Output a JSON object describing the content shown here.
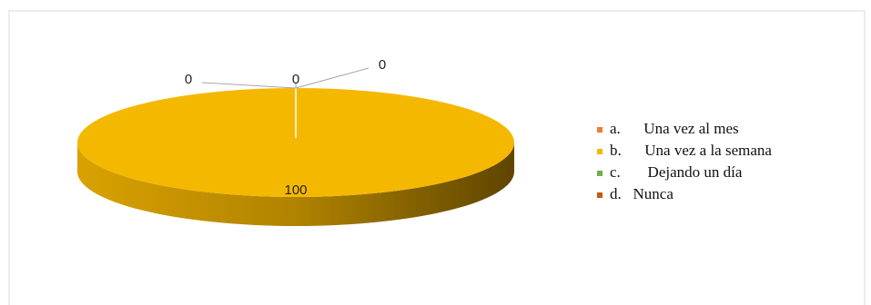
{
  "chart_data": {
    "type": "pie",
    "categories": [
      "a.      Una vez al mes",
      "b.      Una vez a la semana",
      "c.       Dejando un día",
      "d.   Nunca"
    ],
    "values": [
      0,
      100,
      0,
      0
    ],
    "colors": [
      "#ed7d31",
      "#f5b800",
      "#70ad47",
      "#c55a11"
    ],
    "legend": "right"
  }
}
